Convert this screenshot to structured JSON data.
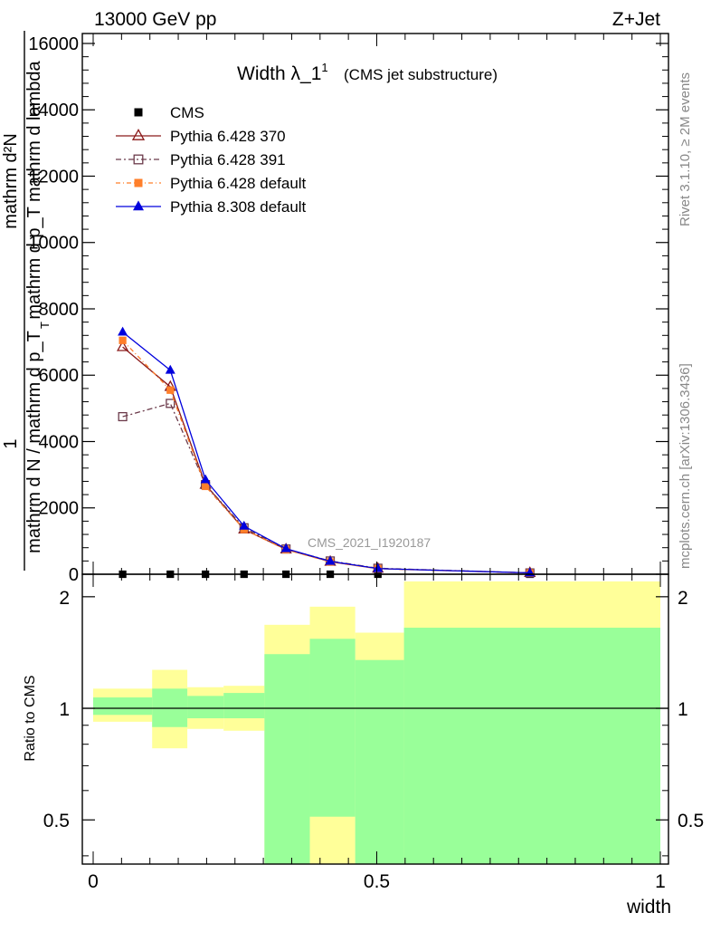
{
  "header": {
    "energy_label": "13000 GeV pp",
    "process_label": "Z+Jet"
  },
  "side_text": {
    "rivet": "Rivet 3.1.10, ≥ 2M events",
    "mcplots": "mcplots.cern.ch [arXiv:1306.3436]"
  },
  "watermark": "CMS_2021_I1920187",
  "colors": {
    "CMS": "#000000",
    "Pythia 6.428 370": "#8b1a1a",
    "Pythia 6.428 391": "#6b3a4a",
    "Pythia 6.428 default": "#ff7f2a",
    "Pythia 8.308 default": "#0000dd",
    "band_outer": "#ffff99",
    "band_inner": "#99ff99"
  },
  "chart_data": [
    {
      "type": "line",
      "title": "Width λ_1",
      "title_sup": "1",
      "subtitle": "(CMS jet substructure)",
      "ylabel_numerator": "mathrm d²N",
      "ylabel_denominator": "mathrm d p_T mathrm d lambda",
      "ylabel_prefix_num": "1",
      "ylabel_prefix_den": "mathrm d N / mathrm d p_T",
      "ylabel_sub": "T",
      "ylim": [
        0,
        16300
      ],
      "y_ticks": [
        0,
        2000,
        4000,
        6000,
        8000,
        10000,
        12000,
        14000,
        16000
      ],
      "y_tick_labels": [
        "0",
        "2000",
        "4000",
        "6000",
        "8000",
        "10000",
        "12000",
        "14000",
        "16000"
      ],
      "xlim": [
        0,
        1
      ],
      "legend_position": "top-left",
      "series": [
        {
          "name": "CMS",
          "marker": "filled-square",
          "x": [
            0.052,
            0.136,
            0.198,
            0.266,
            0.34,
            0.418,
            0.502,
            0.77
          ],
          "values": [
            0,
            0,
            0,
            0,
            0,
            0,
            0,
            0
          ]
        },
        {
          "name": "Pythia 6.428 370",
          "marker": "open-triangle",
          "x": [
            0.052,
            0.136,
            0.198,
            0.266,
            0.34,
            0.418,
            0.502,
            0.77
          ],
          "values": [
            6850,
            5650,
            2700,
            1350,
            750,
            380,
            170,
            40
          ]
        },
        {
          "name": "Pythia 6.428 391",
          "marker": "open-square",
          "x": [
            0.052,
            0.136,
            0.198,
            0.266,
            0.34,
            0.418,
            0.502,
            0.77
          ],
          "values": [
            4750,
            5150,
            2700,
            1400,
            760,
            400,
            180,
            40
          ]
        },
        {
          "name": "Pythia 6.428 default",
          "marker": "filled-square",
          "x": [
            0.052,
            0.136,
            0.198,
            0.266,
            0.34,
            0.418,
            0.502,
            0.77
          ],
          "values": [
            7050,
            5550,
            2650,
            1350,
            740,
            370,
            165,
            38
          ]
        },
        {
          "name": "Pythia 8.308 default",
          "marker": "filled-triangle",
          "x": [
            0.052,
            0.136,
            0.198,
            0.266,
            0.34,
            0.418,
            0.502,
            0.77
          ],
          "values": [
            7300,
            6150,
            2850,
            1450,
            770,
            390,
            170,
            40
          ]
        }
      ]
    },
    {
      "type": "area",
      "ylabel": "Ratio to CMS",
      "xlabel": "width",
      "y_scale": "log",
      "ylim": [
        0.38,
        2.3
      ],
      "y_ticks": [
        0.5,
        1,
        2
      ],
      "y_tick_labels": [
        "0.5",
        "1",
        "2"
      ],
      "x_ticks": [
        0,
        0.5,
        1
      ],
      "x_tick_labels": [
        "0",
        "0.5",
        "1"
      ],
      "xlim": [
        0,
        1
      ],
      "bins": [
        {
          "x0": 0.0,
          "x1": 0.104,
          "outer": [
            0.92,
            1.13
          ],
          "inner": [
            0.96,
            1.07
          ]
        },
        {
          "x0": 0.104,
          "x1": 0.166,
          "outer": [
            0.78,
            1.27
          ],
          "inner": [
            0.89,
            1.13
          ]
        },
        {
          "x0": 0.166,
          "x1": 0.23,
          "outer": [
            0.88,
            1.14
          ],
          "inner": [
            0.94,
            1.08
          ]
        },
        {
          "x0": 0.23,
          "x1": 0.302,
          "outer": [
            0.87,
            1.15
          ],
          "inner": [
            0.94,
            1.1
          ]
        },
        {
          "x0": 0.302,
          "x1": 0.382,
          "outer": [
            0.38,
            1.68
          ],
          "inner": [
            0.38,
            1.4
          ]
        },
        {
          "x0": 0.382,
          "x1": 0.462,
          "outer": [
            0.38,
            1.88
          ],
          "inner": [
            0.51,
            1.54
          ]
        },
        {
          "x0": 0.462,
          "x1": 0.548,
          "outer": [
            0.38,
            1.6
          ],
          "inner": [
            0.38,
            1.35
          ]
        },
        {
          "x0": 0.548,
          "x1": 1.0,
          "outer": [
            0.38,
            2.2
          ],
          "inner": [
            0.38,
            1.65
          ]
        }
      ]
    }
  ]
}
